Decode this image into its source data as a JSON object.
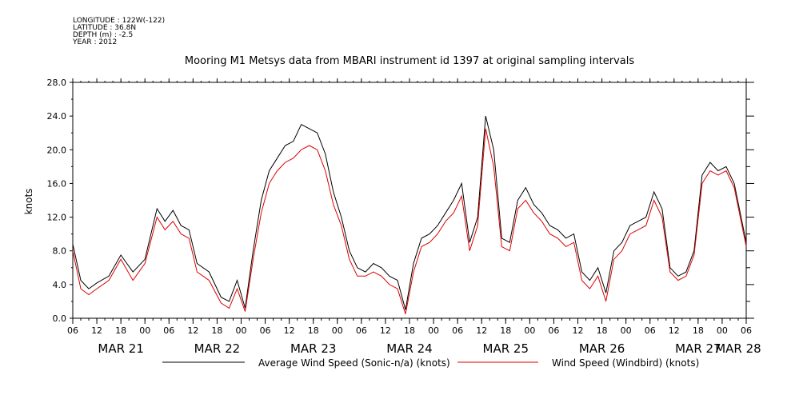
{
  "header": {
    "lines": [
      "LONGITUDE : 122W(-122)",
      "LATITUDE : 36.8N",
      "DEPTH (m) : -2.5",
      "YEAR : 2012"
    ]
  },
  "chart_data": {
    "type": "line",
    "title": "Mooring M1 Metsys data from MBARI instrument id 1397 at original sampling intervals",
    "ylabel": "knots",
    "ylim": [
      0,
      28
    ],
    "yticks": [
      "0.0",
      "4.0",
      "8.0",
      "12.0",
      "16.0",
      "20.0",
      "24.0",
      "28.0"
    ],
    "x_range_hours": [
      0,
      168
    ],
    "x_range_note_start": "MAR 21 06",
    "xtick_labels": [
      "06",
      "12",
      "18",
      "00",
      "06",
      "12",
      "18",
      "00",
      "06",
      "12",
      "18",
      "00",
      "06",
      "12",
      "18",
      "00",
      "06",
      "12",
      "18",
      "00",
      "06",
      "12",
      "18",
      "00",
      "06",
      "12",
      "18",
      "00",
      "06"
    ],
    "date_labels": [
      "MAR 21",
      "MAR 22",
      "MAR 23",
      "MAR 24",
      "MAR 25",
      "MAR 26",
      "MAR 27",
      "MAR 28"
    ],
    "legend_position": "bottom",
    "series": [
      {
        "name": "Average Wind Speed (Sonic-n/a) (knots)",
        "color": "#000000",
        "points": [
          [
            0,
            8.8
          ],
          [
            2,
            4.5
          ],
          [
            4,
            3.5
          ],
          [
            6,
            4.2
          ],
          [
            9,
            5.0
          ],
          [
            12,
            7.5
          ],
          [
            15,
            5.5
          ],
          [
            18,
            7.0
          ],
          [
            21,
            13.0
          ],
          [
            23,
            11.5
          ],
          [
            25,
            12.8
          ],
          [
            27,
            11.0
          ],
          [
            29,
            10.5
          ],
          [
            31,
            6.5
          ],
          [
            34,
            5.5
          ],
          [
            37,
            2.5
          ],
          [
            39,
            2.0
          ],
          [
            41,
            4.5
          ],
          [
            43,
            1.2
          ],
          [
            45,
            8.0
          ],
          [
            47,
            14.0
          ],
          [
            49,
            17.5
          ],
          [
            51,
            19.0
          ],
          [
            53,
            20.5
          ],
          [
            55,
            21.0
          ],
          [
            57,
            23.0
          ],
          [
            59,
            22.5
          ],
          [
            61,
            22.0
          ],
          [
            63,
            19.5
          ],
          [
            65,
            15.0
          ],
          [
            67,
            12.0
          ],
          [
            69,
            8.0
          ],
          [
            71,
            6.0
          ],
          [
            73,
            5.5
          ],
          [
            75,
            6.5
          ],
          [
            77,
            6.0
          ],
          [
            79,
            5.0
          ],
          [
            81,
            4.5
          ],
          [
            83,
            1.0
          ],
          [
            85,
            6.5
          ],
          [
            87,
            9.5
          ],
          [
            89,
            10.0
          ],
          [
            91,
            11.0
          ],
          [
            93,
            12.5
          ],
          [
            95,
            14.0
          ],
          [
            97,
            16.0
          ],
          [
            99,
            9.0
          ],
          [
            101,
            12.0
          ],
          [
            103,
            24.0
          ],
          [
            105,
            20.0
          ],
          [
            107,
            9.5
          ],
          [
            109,
            9.0
          ],
          [
            111,
            14.0
          ],
          [
            113,
            15.5
          ],
          [
            115,
            13.5
          ],
          [
            117,
            12.5
          ],
          [
            119,
            11.0
          ],
          [
            121,
            10.5
          ],
          [
            123,
            9.5
          ],
          [
            125,
            10.0
          ],
          [
            127,
            5.5
          ],
          [
            129,
            4.5
          ],
          [
            131,
            6.0
          ],
          [
            133,
            3.0
          ],
          [
            135,
            8.0
          ],
          [
            137,
            9.0
          ],
          [
            139,
            11.0
          ],
          [
            141,
            11.5
          ],
          [
            143,
            12.0
          ],
          [
            145,
            15.0
          ],
          [
            147,
            13.0
          ],
          [
            149,
            6.0
          ],
          [
            151,
            5.0
          ],
          [
            153,
            5.5
          ],
          [
            155,
            8.0
          ],
          [
            157,
            17.0
          ],
          [
            159,
            18.5
          ],
          [
            161,
            17.5
          ],
          [
            163,
            18.0
          ],
          [
            165,
            16.0
          ],
          [
            168,
            9.0
          ]
        ]
      },
      {
        "name": "Wind Speed (Windbird) (knots)",
        "color": "#dd0000",
        "points": [
          [
            0,
            8.0
          ],
          [
            2,
            3.5
          ],
          [
            4,
            2.8
          ],
          [
            6,
            3.5
          ],
          [
            9,
            4.5
          ],
          [
            12,
            7.0
          ],
          [
            15,
            4.5
          ],
          [
            18,
            6.5
          ],
          [
            21,
            12.0
          ],
          [
            23,
            10.5
          ],
          [
            25,
            11.5
          ],
          [
            27,
            10.0
          ],
          [
            29,
            9.5
          ],
          [
            31,
            5.5
          ],
          [
            34,
            4.5
          ],
          [
            37,
            1.8
          ],
          [
            39,
            1.2
          ],
          [
            41,
            3.5
          ],
          [
            43,
            0.8
          ],
          [
            45,
            7.0
          ],
          [
            47,
            12.5
          ],
          [
            49,
            16.0
          ],
          [
            51,
            17.5
          ],
          [
            53,
            18.5
          ],
          [
            55,
            19.0
          ],
          [
            57,
            20.0
          ],
          [
            59,
            20.5
          ],
          [
            61,
            20.0
          ],
          [
            63,
            17.5
          ],
          [
            65,
            13.5
          ],
          [
            67,
            11.0
          ],
          [
            69,
            7.0
          ],
          [
            71,
            5.0
          ],
          [
            73,
            5.0
          ],
          [
            75,
            5.5
          ],
          [
            77,
            5.0
          ],
          [
            79,
            4.0
          ],
          [
            81,
            3.5
          ],
          [
            83,
            0.5
          ],
          [
            85,
            5.5
          ],
          [
            87,
            8.5
          ],
          [
            89,
            9.0
          ],
          [
            91,
            10.0
          ],
          [
            93,
            11.5
          ],
          [
            95,
            12.5
          ],
          [
            97,
            14.5
          ],
          [
            99,
            8.0
          ],
          [
            101,
            11.0
          ],
          [
            103,
            22.5
          ],
          [
            105,
            18.0
          ],
          [
            107,
            8.5
          ],
          [
            109,
            8.0
          ],
          [
            111,
            13.0
          ],
          [
            113,
            14.0
          ],
          [
            115,
            12.5
          ],
          [
            117,
            11.5
          ],
          [
            119,
            10.0
          ],
          [
            121,
            9.5
          ],
          [
            123,
            8.5
          ],
          [
            125,
            9.0
          ],
          [
            127,
            4.5
          ],
          [
            129,
            3.5
          ],
          [
            131,
            5.0
          ],
          [
            133,
            2.0
          ],
          [
            135,
            7.0
          ],
          [
            137,
            8.0
          ],
          [
            139,
            10.0
          ],
          [
            141,
            10.5
          ],
          [
            143,
            11.0
          ],
          [
            145,
            14.0
          ],
          [
            147,
            12.0
          ],
          [
            149,
            5.5
          ],
          [
            151,
            4.5
          ],
          [
            153,
            5.0
          ],
          [
            155,
            7.5
          ],
          [
            157,
            16.0
          ],
          [
            159,
            17.5
          ],
          [
            161,
            17.0
          ],
          [
            163,
            17.5
          ],
          [
            165,
            15.5
          ],
          [
            168,
            8.5
          ]
        ]
      }
    ]
  }
}
